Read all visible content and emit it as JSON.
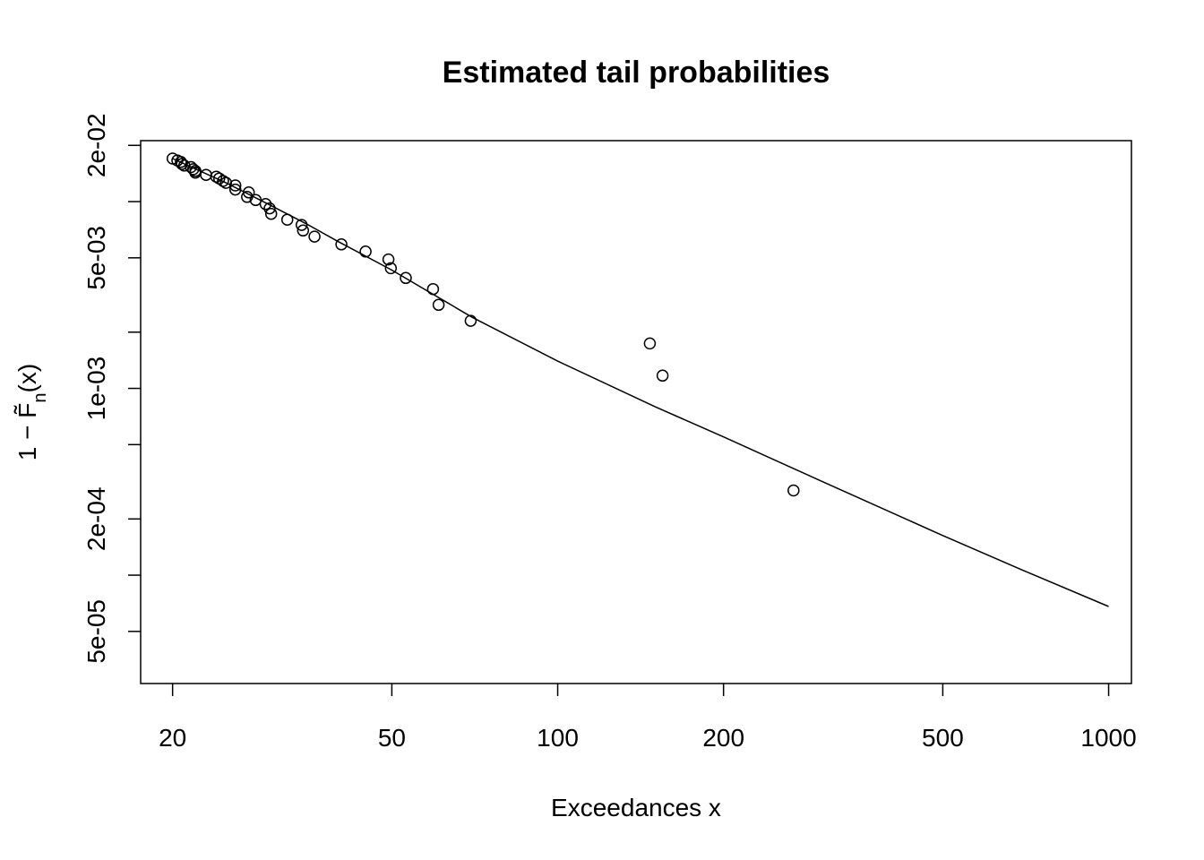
{
  "chart_data": {
    "type": "scatter",
    "title": "Estimated tail probabilities",
    "xlabel": "Exceedances x",
    "ylabel": {
      "prefix": "1 − ",
      "symbol": "F",
      "accent": "̃",
      "subscript": "n",
      "suffix": "(x)"
    },
    "x_scale": "log",
    "y_scale": "log",
    "xlim": [
      17.5,
      1100
    ],
    "ylim": [
      2.63e-05,
      0.0212
    ],
    "x_ticks": [
      20,
      50,
      100,
      200,
      500,
      1000
    ],
    "x_tick_labels": [
      "20",
      "50",
      "100",
      "200",
      "500",
      "1000"
    ],
    "y_ticks": [
      0.02,
      0.01,
      0.005,
      0.002,
      0.001,
      0.0005,
      0.0002,
      0.0001,
      5e-05
    ],
    "y_tick_labels": [
      "2e-02",
      "",
      "5e-03",
      "",
      "1e-03",
      "",
      "2e-04",
      "",
      "5e-05"
    ],
    "grid": false,
    "legend": "none",
    "points": [
      {
        "x": 20.0,
        "y": 0.017
      },
      {
        "x": 20.4,
        "y": 0.0166
      },
      {
        "x": 20.7,
        "y": 0.0163
      },
      {
        "x": 20.8,
        "y": 0.0159
      },
      {
        "x": 21.0,
        "y": 0.0156
      },
      {
        "x": 21.6,
        "y": 0.0153
      },
      {
        "x": 21.8,
        "y": 0.0149
      },
      {
        "x": 22.0,
        "y": 0.0146
      },
      {
        "x": 22.0,
        "y": 0.0143
      },
      {
        "x": 23.0,
        "y": 0.0139
      },
      {
        "x": 24.0,
        "y": 0.0136
      },
      {
        "x": 24.3,
        "y": 0.0133
      },
      {
        "x": 24.7,
        "y": 0.0129
      },
      {
        "x": 25.0,
        "y": 0.0126
      },
      {
        "x": 26.0,
        "y": 0.0122
      },
      {
        "x": 26.0,
        "y": 0.0116
      },
      {
        "x": 27.5,
        "y": 0.0112
      },
      {
        "x": 27.3,
        "y": 0.0106
      },
      {
        "x": 28.3,
        "y": 0.0102
      },
      {
        "x": 29.5,
        "y": 0.0097
      },
      {
        "x": 30.0,
        "y": 0.0092
      },
      {
        "x": 30.2,
        "y": 0.0086
      },
      {
        "x": 32.3,
        "y": 0.008
      },
      {
        "x": 34.3,
        "y": 0.0075
      },
      {
        "x": 34.5,
        "y": 0.007
      },
      {
        "x": 36.2,
        "y": 0.0065
      },
      {
        "x": 40.5,
        "y": 0.0059
      },
      {
        "x": 44.8,
        "y": 0.0054
      },
      {
        "x": 49.3,
        "y": 0.0049
      },
      {
        "x": 49.8,
        "y": 0.0044
      },
      {
        "x": 53.0,
        "y": 0.0039
      },
      {
        "x": 59.4,
        "y": 0.0034
      },
      {
        "x": 60.8,
        "y": 0.0028
      },
      {
        "x": 69.5,
        "y": 0.0023
      },
      {
        "x": 147.0,
        "y": 0.00174
      },
      {
        "x": 155.0,
        "y": 0.00117
      },
      {
        "x": 268.0,
        "y": 0.000284
      }
    ],
    "fit_line": [
      {
        "x": 20.0,
        "y": 0.017
      },
      {
        "x": 25.0,
        "y": 0.0126
      },
      {
        "x": 30.0,
        "y": 0.0096
      },
      {
        "x": 35.0,
        "y": 0.0076
      },
      {
        "x": 40.0,
        "y": 0.0061
      },
      {
        "x": 50.0,
        "y": 0.0043
      },
      {
        "x": 70.0,
        "y": 0.0024
      },
      {
        "x": 100.0,
        "y": 0.0014
      },
      {
        "x": 150.0,
        "y": 0.0008
      },
      {
        "x": 200.0,
        "y": 0.00055
      },
      {
        "x": 300.0,
        "y": 0.00032
      },
      {
        "x": 500.0,
        "y": 0.000163
      },
      {
        "x": 700.0,
        "y": 0.000106
      },
      {
        "x": 1000.0,
        "y": 6.8e-05
      }
    ]
  }
}
